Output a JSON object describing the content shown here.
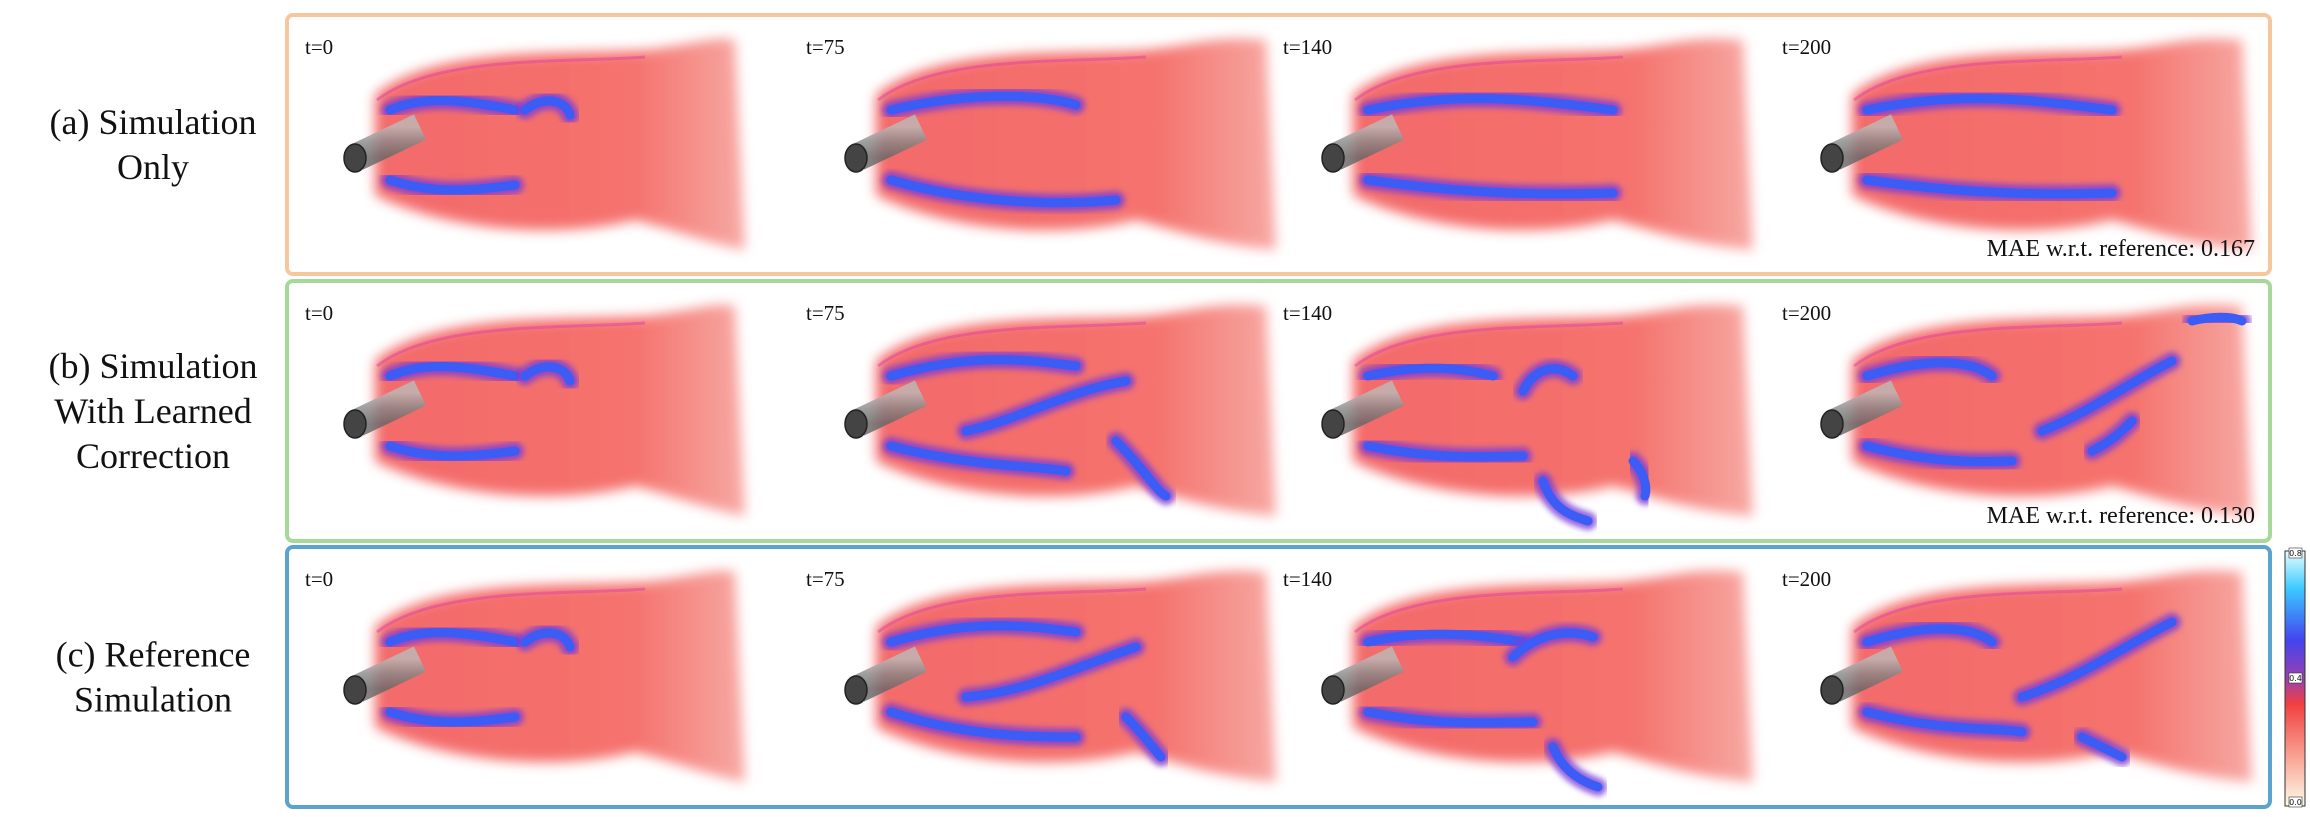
{
  "rows": [
    {
      "label": [
        "(a) Simulation",
        "Only"
      ],
      "times": [
        "t=0",
        "t=75",
        "t=140",
        "t=200"
      ],
      "mae": "MAE w.r.t. reference: 0.167"
    },
    {
      "label": [
        "(b) Simulation",
        "With Learned",
        "Correction"
      ],
      "times": [
        "t=0",
        "t=75",
        "t=140",
        "t=200"
      ],
      "mae": "MAE w.r.t. reference: 0.130"
    },
    {
      "label": [
        "(c) Reference",
        "Simulation"
      ],
      "times": [
        "t=0",
        "t=75",
        "t=140",
        "t=200"
      ]
    }
  ],
  "colorbar": {
    "ticks": [
      "0.8",
      "0.4",
      "0.0"
    ]
  }
}
